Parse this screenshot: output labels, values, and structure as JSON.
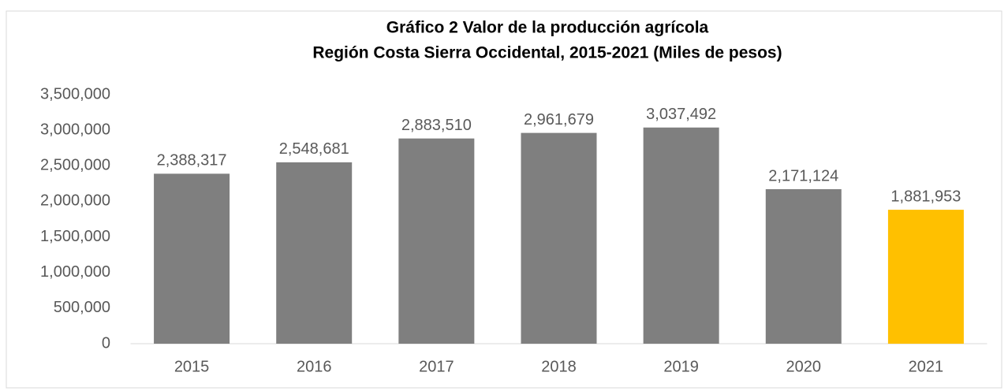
{
  "chart_data": {
    "type": "bar",
    "title": "Gráfico 2  Valor de la producción agrícola",
    "subtitle": "Región Costa Sierra Occidental, 2015-2021 (Miles de pesos)",
    "categories": [
      "2015",
      "2016",
      "2017",
      "2018",
      "2019",
      "2020",
      "2021"
    ],
    "values": [
      2388317,
      2548681,
      2883510,
      2961679,
      3037492,
      2171124,
      1881953
    ],
    "value_labels": [
      "2,388,317",
      "2,548,681",
      "2,883,510",
      "2,961,679",
      "3,037,492",
      "2,171,124",
      "1,881,953"
    ],
    "colors": [
      "#7f7f7f",
      "#7f7f7f",
      "#7f7f7f",
      "#7f7f7f",
      "#7f7f7f",
      "#7f7f7f",
      "#ffc000"
    ],
    "ylim": [
      0,
      3500000
    ],
    "yticks": [
      0,
      {
        "value": 500000,
        "label": "500,000"
      },
      {
        "value": 1000000,
        "label": "1,000,000"
      },
      {
        "value": 1500000,
        "label": "1,500,000"
      },
      {
        "value": 2000000,
        "label": "2,000,000"
      },
      {
        "value": 2500000,
        "label": "2,500,000"
      },
      {
        "value": 3000000,
        "label": "3,000,000"
      },
      {
        "value": 3500000,
        "label": "3,500,000"
      }
    ],
    "grid": false
  }
}
